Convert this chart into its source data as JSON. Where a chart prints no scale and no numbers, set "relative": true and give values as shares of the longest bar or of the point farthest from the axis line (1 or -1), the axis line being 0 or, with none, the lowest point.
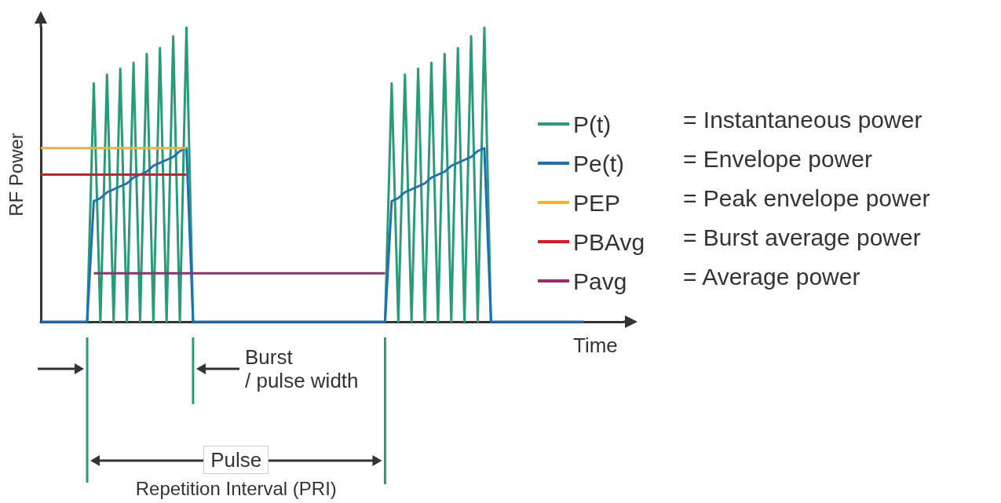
{
  "chart_data": {
    "type": "line",
    "relative": true,
    "xlabel": "Time",
    "ylabel": "RF Power",
    "legend": "right",
    "categories": [
      null,
      null,
      null,
      null,
      null,
      null,
      null,
      null,
      null,
      null,
      null,
      null,
      null,
      null,
      null,
      null,
      null,
      null,
      null,
      null,
      null,
      null,
      null,
      null,
      null,
      null,
      null,
      null,
      null,
      null,
      null,
      null,
      null,
      null,
      null,
      null,
      null,
      null,
      null,
      null,
      null,
      null,
      null,
      null,
      null,
      null,
      null,
      null,
      null,
      null,
      null,
      null,
      null,
      null,
      null,
      null,
      null,
      null,
      null,
      null,
      null,
      null,
      null,
      null,
      null,
      null,
      null,
      null,
      null,
      null,
      null,
      null,
      null,
      null,
      null,
      null,
      null,
      null,
      null,
      null,
      null,
      null,
      null,
      null,
      null,
      null,
      null,
      null,
      null
    ],
    "series": [
      {
        "name": "P(t)",
        "color": "#2a9b78",
        "values": [
          null,
          null,
          null,
          null,
          null,
          null,
          null,
          0,
          0.81,
          0,
          0.84,
          0,
          0.86,
          0,
          0.88,
          0,
          0.91,
          0,
          0.93,
          0,
          0.97,
          0,
          1,
          0,
          null,
          null,
          null,
          null,
          null,
          null,
          null,
          null,
          null,
          null,
          null,
          null,
          null,
          null,
          null,
          null,
          null,
          null,
          null,
          null,
          null,
          null,
          null,
          null,
          null,
          null,
          null,
          null,
          0,
          0.81,
          0,
          0.84,
          0,
          0.86,
          0,
          0.88,
          0,
          0.91,
          0,
          0.93,
          0,
          0.97,
          0,
          1,
          0,
          null,
          null,
          null,
          null,
          null,
          null,
          null,
          null,
          null,
          null,
          null,
          null,
          null,
          null,
          null,
          null,
          null,
          null,
          null,
          null
        ]
      },
      {
        "name": "Pe(t)",
        "color": "#1f6fb5",
        "values": [
          0,
          0,
          0,
          0,
          0,
          0,
          0,
          0,
          0.41,
          0.42,
          0.44,
          0.45,
          0.46,
          0.47,
          0.49,
          0.5,
          0.51,
          0.53,
          0.54,
          0.55,
          0.56,
          0.58,
          0.59,
          0,
          0,
          0,
          0,
          0,
          0,
          0,
          0,
          0,
          0,
          0,
          0,
          0,
          0,
          0,
          0,
          0,
          0,
          0,
          0,
          0,
          0,
          0,
          0,
          0,
          0,
          0,
          0,
          0,
          0,
          0.41,
          0.42,
          0.44,
          0.45,
          0.46,
          0.47,
          0.49,
          0.5,
          0.51,
          0.53,
          0.54,
          0.55,
          0.56,
          0.58,
          0.59,
          0,
          0,
          0,
          0,
          0,
          0,
          0,
          0,
          0,
          0,
          0,
          0,
          0,
          0,
          0,
          null,
          null,
          null,
          null,
          null,
          null
        ]
      },
      {
        "name": "PEP",
        "color": "#f0b233",
        "values": [
          0.59,
          0.59,
          0.59,
          0.59,
          0.59,
          0.59,
          0.59,
          0.59,
          0.59,
          0.59,
          0.59,
          0.59,
          0.59,
          0.59,
          0.59,
          0.59,
          0.59,
          0.59,
          0.59,
          0.59,
          0.59,
          0.59,
          0.59,
          null,
          null,
          null,
          null,
          null,
          null,
          null,
          null,
          null,
          null,
          null,
          null,
          null,
          null,
          null,
          null,
          null,
          null,
          null,
          null,
          null,
          null,
          null,
          null,
          null,
          null,
          null,
          null,
          null,
          null,
          null,
          null,
          null,
          null,
          null,
          null,
          null,
          null,
          null,
          null,
          null,
          null,
          null,
          null,
          null,
          null,
          null,
          null,
          null,
          null,
          null,
          null,
          null,
          null,
          null,
          null,
          null,
          null,
          null,
          null,
          null,
          null,
          null,
          null,
          null,
          null
        ]
      },
      {
        "name": "PBAvg",
        "color": "#e8141c",
        "values": [
          0.5,
          0.5,
          0.5,
          0.5,
          0.5,
          0.5,
          0.5,
          0.5,
          0.5,
          0.5,
          0.5,
          0.5,
          0.5,
          0.5,
          0.5,
          0.5,
          0.5,
          0.5,
          0.5,
          0.5,
          0.5,
          0.5,
          0.5,
          null,
          null,
          null,
          null,
          null,
          null,
          null,
          null,
          null,
          null,
          null,
          null,
          null,
          null,
          null,
          null,
          null,
          null,
          null,
          null,
          null,
          null,
          null,
          null,
          null,
          null,
          null,
          null,
          null,
          null,
          null,
          null,
          null,
          null,
          null,
          null,
          null,
          null,
          null,
          null,
          null,
          null,
          null,
          null,
          null,
          null,
          null,
          null,
          null,
          null,
          null,
          null,
          null,
          null,
          null,
          null,
          null,
          null,
          null,
          null,
          null,
          null,
          null,
          null,
          null,
          null
        ]
      },
      {
        "name": "Pavg",
        "color": "#9c2a6c",
        "values": [
          null,
          null,
          null,
          null,
          null,
          null,
          null,
          null,
          0.165,
          0.165,
          0.165,
          0.165,
          0.165,
          0.165,
          0.165,
          0.165,
          0.165,
          0.165,
          0.165,
          0.165,
          0.165,
          0.165,
          0.165,
          0.165,
          0.165,
          0.165,
          0.165,
          0.165,
          0.165,
          0.165,
          0.165,
          0.165,
          0.165,
          0.165,
          0.165,
          0.165,
          0.165,
          0.165,
          0.165,
          0.165,
          0.165,
          0.165,
          0.165,
          0.165,
          0.165,
          0.165,
          0.165,
          0.165,
          0.165,
          0.165,
          0.165,
          0.165,
          0.165,
          null,
          null,
          null,
          null,
          null,
          null,
          null,
          null,
          null,
          null,
          null,
          null,
          null,
          null,
          null,
          null,
          null,
          null,
          null,
          null,
          null,
          null,
          null,
          null,
          null,
          null,
          null,
          null,
          null,
          null,
          null,
          null,
          null,
          null,
          null,
          null
        ]
      }
    ],
    "annotations": [
      "= Instantaneous power",
      "= Envelope power",
      "= Peak envelope power",
      "= Burst average power",
      "= Average power",
      "Burst\n/ pulse width",
      "Pulse",
      "Repetition Interval (PRI)"
    ]
  }
}
